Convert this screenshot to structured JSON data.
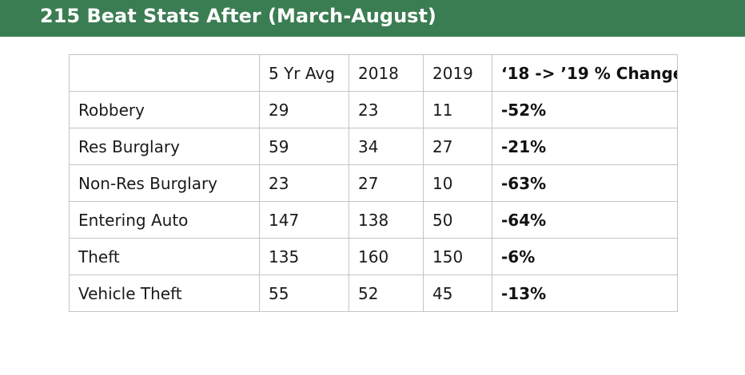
{
  "header": {
    "title": "215 Beat Stats After (March-August)",
    "background_color": "#3b7d52"
  },
  "table": {
    "columns": [
      "",
      "5 Yr Avg",
      "2018",
      "2019",
      "‘18 -> ’19 % Change"
    ],
    "rows": [
      {
        "label": "Robbery",
        "avg": "29",
        "y2018": "23",
        "y2019": "11",
        "change": "-52%"
      },
      {
        "label": "Res Burglary",
        "avg": "59",
        "y2018": "34",
        "y2019": "27",
        "change": "-21%"
      },
      {
        "label": "Non-Res Burglary",
        "avg": "23",
        "y2018": "27",
        "y2019": "10",
        "change": "-63%"
      },
      {
        "label": "Entering Auto",
        "avg": "147",
        "y2018": "138",
        "y2019": "50",
        "change": "-64%"
      },
      {
        "label": "Theft",
        "avg": "135",
        "y2018": "160",
        "y2019": "150",
        "change": "-6%"
      },
      {
        "label": "Vehicle Theft",
        "avg": "55",
        "y2018": "52",
        "y2019": "45",
        "change": "-13%"
      }
    ]
  }
}
